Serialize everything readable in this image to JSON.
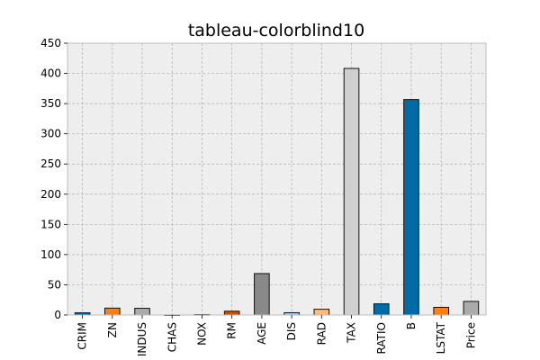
{
  "chart_data": {
    "type": "bar",
    "title": "tableau-colorblind10",
    "xlabel": "",
    "ylabel": "",
    "categories": [
      "CRIM",
      "ZN",
      "INDUS",
      "CHAS",
      "NOX",
      "RM",
      "AGE",
      "DIS",
      "RAD",
      "TAX",
      "RATIO",
      "B",
      "LSTAT",
      "Price"
    ],
    "values": [
      3.6,
      11.4,
      11.1,
      0.1,
      0.6,
      6.3,
      68.6,
      3.8,
      9.5,
      408.2,
      18.5,
      356.7,
      12.7,
      22.5
    ],
    "colors": [
      "#006BA4",
      "#FF800E",
      "#ABABAB",
      "#595959",
      "#5F9ED1",
      "#C85200",
      "#898989",
      "#A2C8EC",
      "#FFBC79",
      "#CFCFCF",
      "#006BA4",
      "#006BA4",
      "#FF800E",
      "#ABABAB"
    ],
    "ylim": [
      0,
      450
    ],
    "yticks": [
      0,
      50,
      100,
      150,
      200,
      250,
      300,
      350,
      400,
      450
    ],
    "grid": true,
    "legend": "none",
    "background_color": "#EEEEEE"
  }
}
